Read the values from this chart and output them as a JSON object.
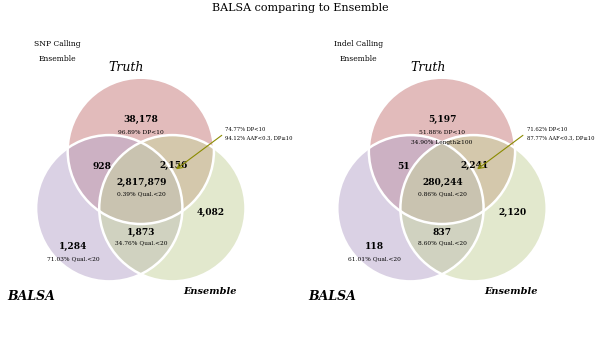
{
  "title": "BALSA comparing to Ensemble",
  "title_fontsize": 8,
  "bg_color": "#ffffff",
  "panels": [
    {
      "subtitle_line1": "SNP Calling",
      "subtitle_line2": "Ensemble",
      "label_balsa": "BALSA",
      "label_ensemble": "Ensemble",
      "label_truth": "Truth",
      "truth_color": "#c97d7d",
      "balsa_color": "#b8a8cc",
      "ensemble_color": "#c8d4a0",
      "truth_only": "38,178",
      "truth_only_sub": "96.89% DP<10",
      "truth_only_sub2": null,
      "balsa_only": "1,284",
      "balsa_only_sub": "71.03% Qual.<20",
      "ensemble_only": "4,082",
      "truth_balsa": "928",
      "truth_ensemble": "2,156",
      "truth_ensemble_note1": "74.77% DP<10",
      "truth_ensemble_note2": "94.12% AAF<0.3, DP≥10",
      "balsa_ensemble": "1,873",
      "balsa_ensemble_sub": "34.76% Qual.<20",
      "all_three": "2,817,879",
      "all_three_sub": "0.39% Qual.<20"
    },
    {
      "subtitle_line1": "Indel Calling",
      "subtitle_line2": "Ensemble",
      "label_balsa": "BALSA",
      "label_ensemble": "Ensemble",
      "label_truth": "Truth",
      "truth_color": "#c97d7d",
      "balsa_color": "#b8a8cc",
      "ensemble_color": "#c8d4a0",
      "truth_only": "5,197",
      "truth_only_sub": "51.88% DP<10",
      "truth_only_sub2": "34.90% Length≥100",
      "balsa_only": "118",
      "balsa_only_sub": "61.01% Qual.<20",
      "ensemble_only": "2,120",
      "truth_balsa": "51",
      "truth_ensemble": "2,241",
      "truth_ensemble_note1": "71.62% DP<10",
      "truth_ensemble_note2": "87.77% AAF<0.3, DP≥10",
      "balsa_ensemble": "837",
      "balsa_ensemble_sub": "8.60% Qual.<20",
      "all_three": "280,244",
      "all_three_sub": "0.86% Qual.<20"
    }
  ]
}
